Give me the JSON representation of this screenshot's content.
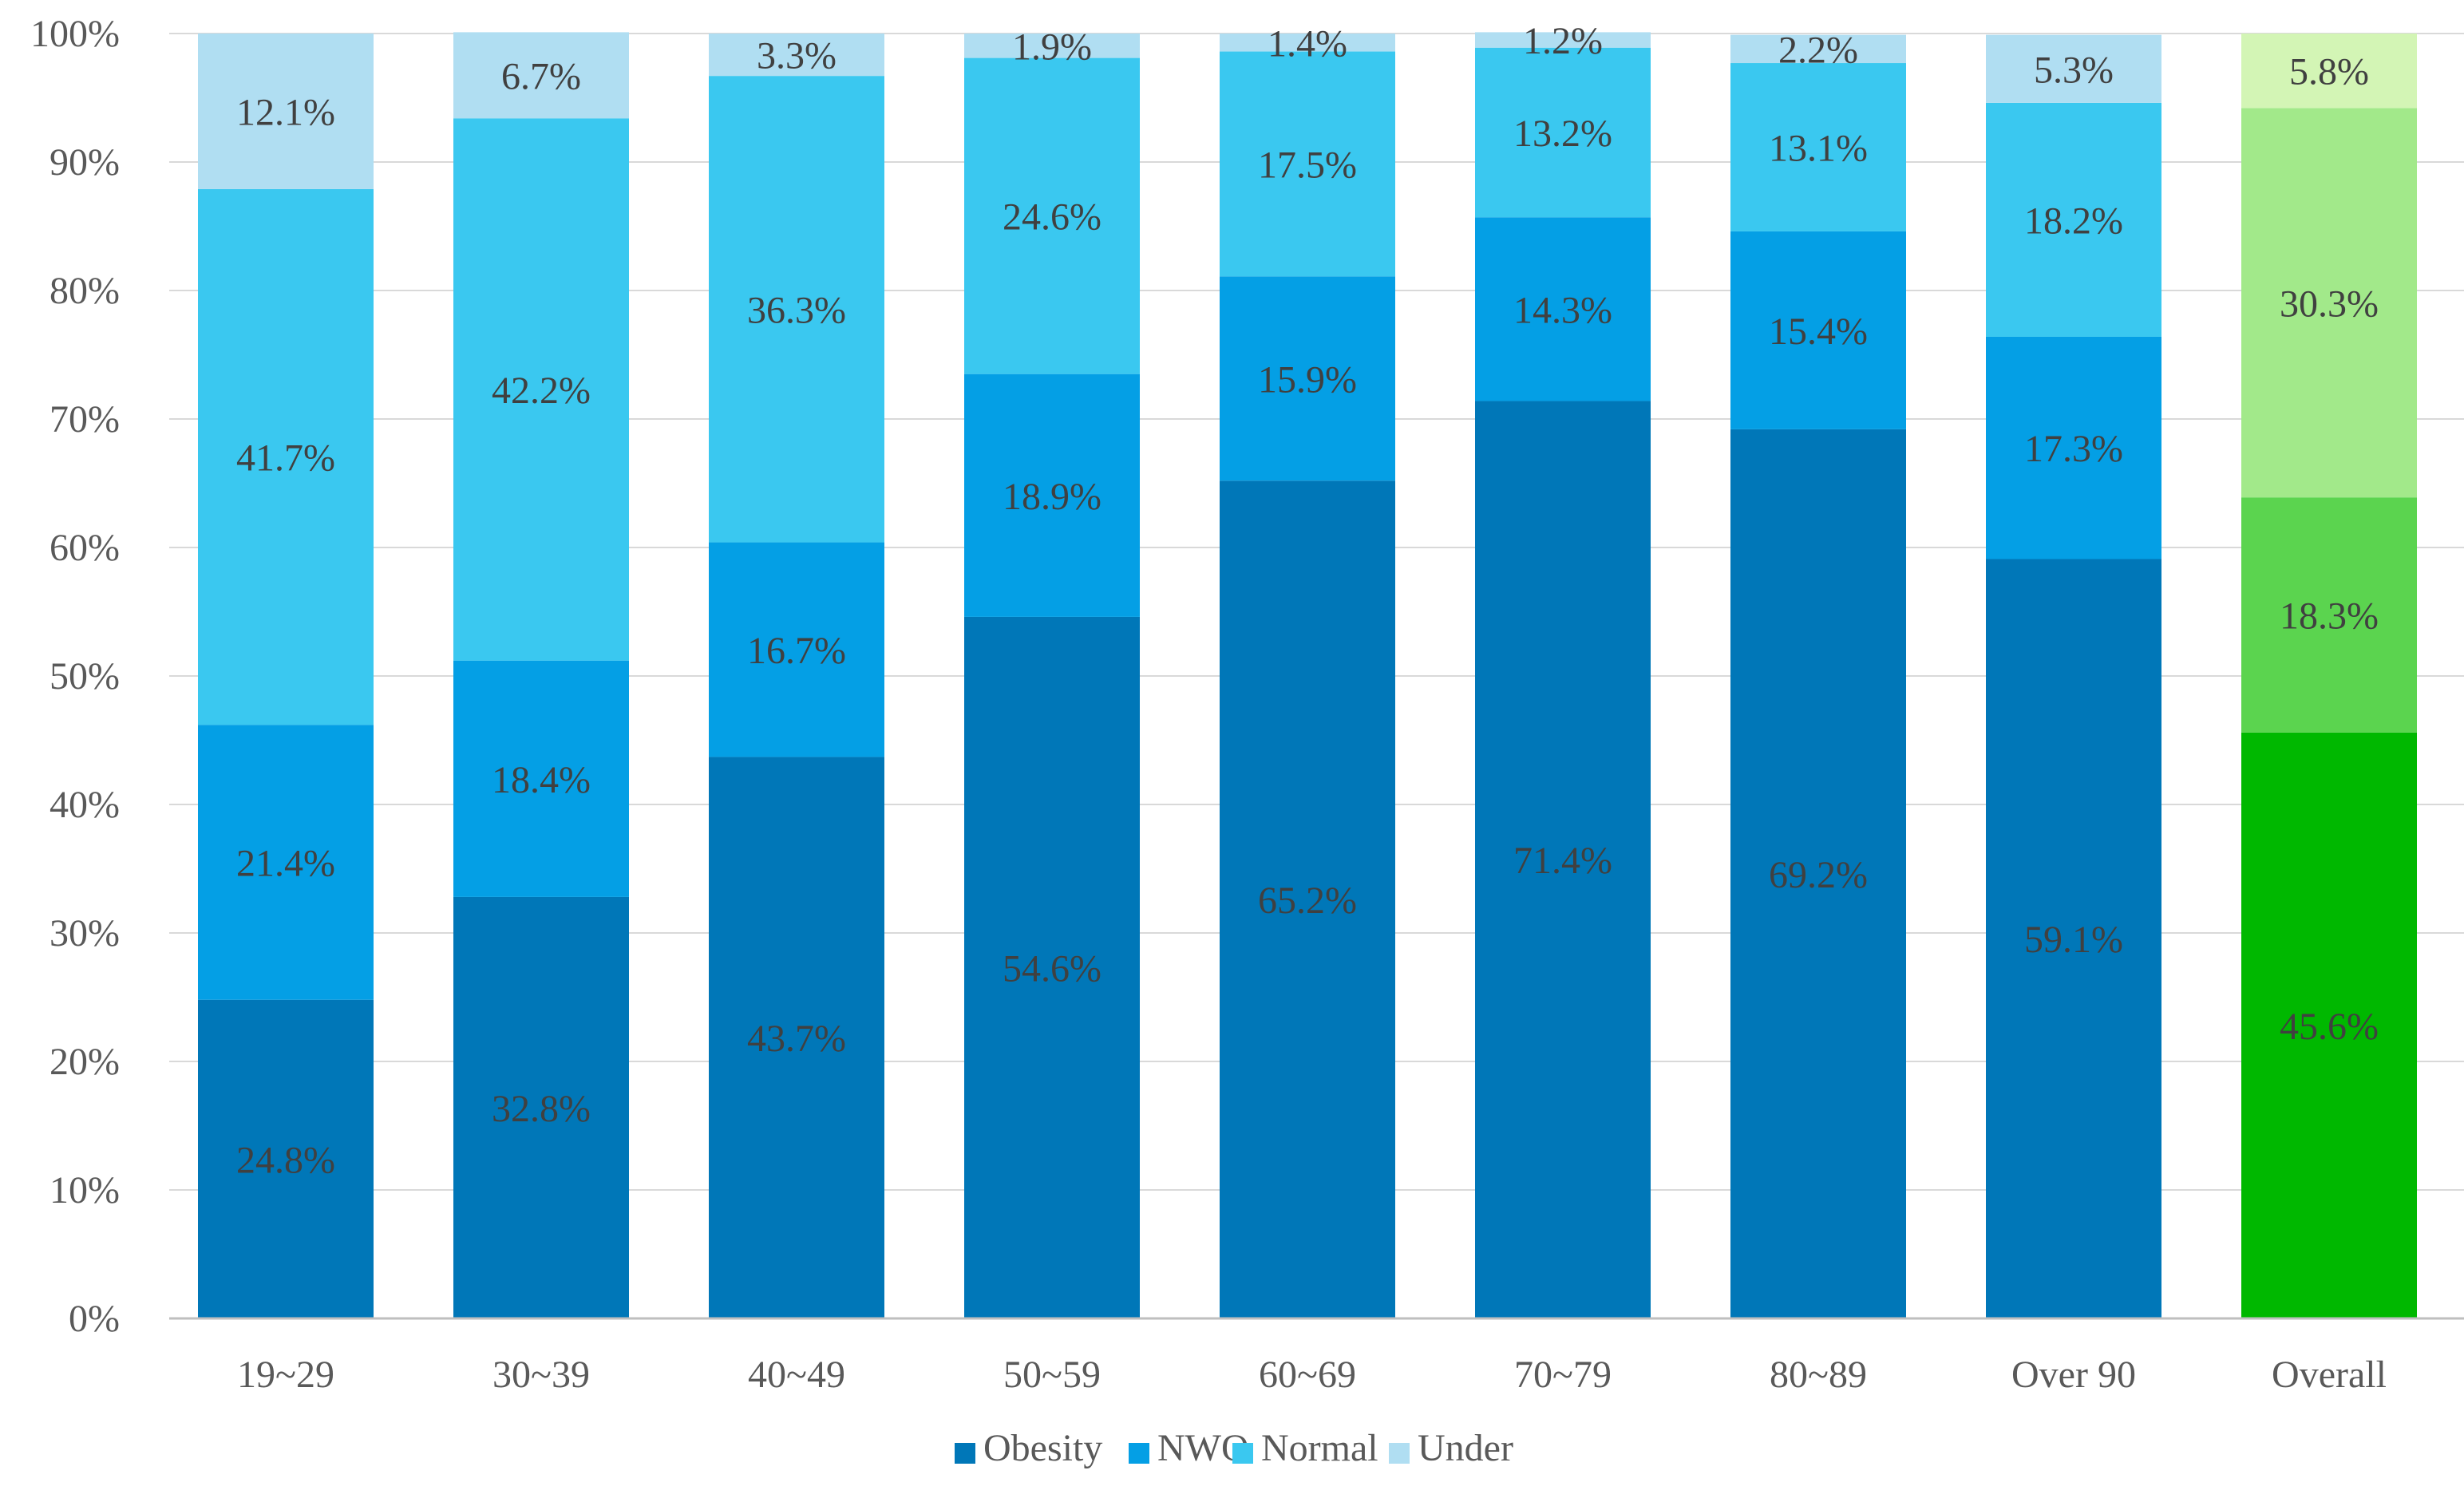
{
  "chart_data": {
    "type": "bar",
    "stacked": true,
    "normalized": true,
    "title": "",
    "xlabel": "",
    "ylabel": "",
    "ylim": [
      0,
      100
    ],
    "y_ticks": [
      "0%",
      "10%",
      "20%",
      "30%",
      "40%",
      "50%",
      "60%",
      "70%",
      "80%",
      "90%",
      "100%"
    ],
    "grid": true,
    "legend_position": "bottom",
    "categories": [
      "19~29",
      "30~39",
      "40~49",
      "50~59",
      "60~69",
      "70~79",
      "80~89",
      "Over 90",
      "Overall"
    ],
    "series": [
      {
        "name": "Obesity",
        "values": [
          24.8,
          32.8,
          43.7,
          54.6,
          65.2,
          71.4,
          69.2,
          59.1,
          45.6
        ],
        "labels": [
          "24.8%",
          "32.8%",
          "43.7%",
          "54.6%",
          "65.2%",
          "71.4%",
          "69.2%",
          "59.1%",
          "45.6%"
        ],
        "color": "#0077B8",
        "highlight_color": "#00B800"
      },
      {
        "name": "NWO",
        "values": [
          21.4,
          18.4,
          16.7,
          18.9,
          15.9,
          14.3,
          15.4,
          17.3,
          18.3
        ],
        "labels": [
          "21.4%",
          "18.4%",
          "16.7%",
          "18.9%",
          "15.9%",
          "14.3%",
          "15.4%",
          "17.3%",
          "18.3%"
        ],
        "color": "#049FE5",
        "highlight_color": "#5BD44F"
      },
      {
        "name": "Normal",
        "values": [
          41.7,
          42.2,
          36.3,
          24.6,
          17.5,
          13.2,
          13.1,
          18.2,
          30.3
        ],
        "labels": [
          "41.7%",
          "42.2%",
          "36.3%",
          "24.6%",
          "17.5%",
          "13.2%",
          "13.1%",
          "18.2%",
          "30.3%"
        ],
        "color": "#3AC8F0",
        "highlight_color": "#A2E98A"
      },
      {
        "name": "Under",
        "values": [
          12.1,
          6.7,
          3.3,
          1.9,
          1.4,
          1.2,
          2.2,
          5.3,
          5.8
        ],
        "labels": [
          "12.1%",
          "6.7%",
          "3.3%",
          "1.9%",
          "1.4%",
          "1.2%",
          "2.2%",
          "5.3%",
          "5.8%"
        ],
        "color": "#B0DEF2",
        "highlight_color": "#D3F5B5"
      }
    ],
    "highlight_category": "Overall",
    "gridline_color": "#D9D9D9",
    "axis_color": "#BFBFBF"
  }
}
